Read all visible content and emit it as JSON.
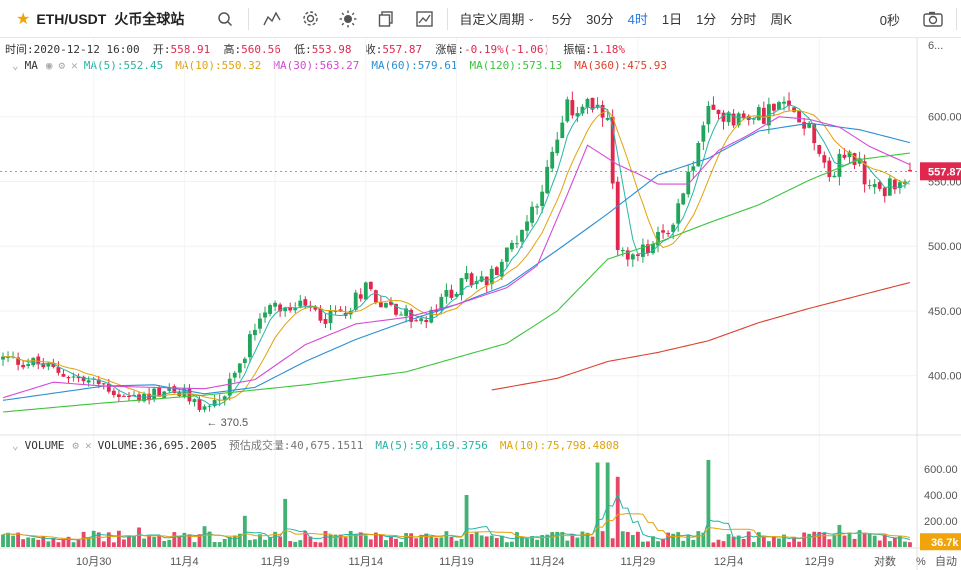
{
  "toolbar": {
    "symbol": "ETH/USDT",
    "exchange": "火币全球站",
    "periods": [
      "自定义周期",
      "5分",
      "30分",
      "4时",
      "1日",
      "1分",
      "分时",
      "周K"
    ],
    "active_period": "4时",
    "countdown": "0秒",
    "icons": [
      "star-icon",
      "search-icon",
      "indicator-icon",
      "settings-icon",
      "theme-icon",
      "copy-icon",
      "chart-type-icon",
      "camera-icon"
    ]
  },
  "ohlc": {
    "time_label": "时间:",
    "time": "2020-12-12 16:00",
    "open_label": "开:",
    "open": "558.91",
    "high_label": "高:",
    "high": "560.56",
    "low_label": "低:",
    "low": "553.98",
    "close_label": "收:",
    "close": "557.87",
    "change_label": "涨幅:",
    "change": "-0.19%(-1.06)",
    "amp_label": "振幅:",
    "amp": "1.18%"
  },
  "ma_legend": {
    "label": "MA",
    "items": [
      {
        "text": "MA(5):552.45",
        "color": "#26b5a5"
      },
      {
        "text": "MA(10):550.32",
        "color": "#e0a30d"
      },
      {
        "text": "MA(30):563.27",
        "color": "#d44bd6"
      },
      {
        "text": "MA(60):579.61",
        "color": "#2a8fd6"
      },
      {
        "text": "MA(120):573.13",
        "color": "#3cc43c"
      },
      {
        "text": "MA(360):475.93",
        "color": "#d9432f"
      }
    ]
  },
  "vol_legend": {
    "label": "VOLUME",
    "items": [
      {
        "text": "VOLUME:36,695.2005",
        "color": "#333333"
      },
      {
        "text": "预估成交量:40,675.1511",
        "color": "#777777"
      },
      {
        "text": "MA(5):50,169.3756",
        "color": "#26b5a5"
      },
      {
        "text": "MA(10):75,798.4808",
        "color": "#e0a30d"
      }
    ]
  },
  "colors": {
    "up": "#21a55a",
    "down": "#e0284e",
    "price_tag": "#e0284e",
    "vol_tag": "#f0a30a"
  },
  "chart_data": {
    "type": "candlestick",
    "price_axis": {
      "min": 355,
      "max": 650,
      "ticks": [
        400,
        450,
        500,
        550,
        600
      ],
      "tick_labels": [
        "400.00",
        "450.00",
        "500.00",
        "550.00",
        "600.00"
      ],
      "top_label": "6..."
    },
    "volume_axis": {
      "min": 0,
      "max": 700,
      "ticks": [
        200,
        400,
        600
      ],
      "tick_labels": [
        "200.00",
        "400.00",
        "600.00"
      ]
    },
    "x_labels": [
      "10月30",
      "11月4",
      "11月9",
      "11月14",
      "11月19",
      "11月24",
      "11月29",
      "12月4",
      "12月9"
    ],
    "x_label_candle_index": [
      18,
      36,
      54,
      72,
      90,
      108,
      126,
      144,
      162
    ],
    "bottom_right": [
      "对数",
      "%",
      "自动"
    ],
    "last_price": "557.87",
    "last_volume": "36.7k",
    "low_annotation": {
      "value": 370.5,
      "text": "← 370.5",
      "candle_index": 40
    },
    "price_path": [
      [
        0,
        413
      ],
      [
        6,
        410
      ],
      [
        12,
        402
      ],
      [
        16,
        396
      ],
      [
        20,
        393
      ],
      [
        24,
        383
      ],
      [
        28,
        384
      ],
      [
        32,
        389
      ],
      [
        36,
        385
      ],
      [
        40,
        375
      ],
      [
        44,
        385
      ],
      [
        47,
        408
      ],
      [
        50,
        440
      ],
      [
        53,
        459
      ],
      [
        56,
        451
      ],
      [
        60,
        452
      ],
      [
        64,
        445
      ],
      [
        68,
        451
      ],
      [
        72,
        470
      ],
      [
        76,
        454
      ],
      [
        80,
        447
      ],
      [
        84,
        441
      ],
      [
        88,
        462
      ],
      [
        92,
        474
      ],
      [
        96,
        473
      ],
      [
        100,
        495
      ],
      [
        104,
        520
      ],
      [
        108,
        556
      ],
      [
        112,
        605
      ],
      [
        116,
        610
      ],
      [
        120,
        592
      ],
      [
        122,
        500
      ],
      [
        124,
        488
      ],
      [
        128,
        498
      ],
      [
        132,
        512
      ],
      [
        136,
        553
      ],
      [
        140,
        602
      ],
      [
        144,
        603
      ],
      [
        148,
        596
      ],
      [
        152,
        605
      ],
      [
        156,
        606
      ],
      [
        160,
        595
      ],
      [
        164,
        555
      ],
      [
        168,
        575
      ],
      [
        172,
        545
      ],
      [
        176,
        546
      ],
      [
        180,
        557.87
      ]
    ],
    "volume_spikes": [
      [
        27,
        150
      ],
      [
        40,
        160
      ],
      [
        48,
        240
      ],
      [
        56,
        370
      ],
      [
        92,
        400
      ],
      [
        118,
        650
      ],
      [
        120,
        650
      ],
      [
        122,
        540
      ],
      [
        140,
        670
      ],
      [
        166,
        170
      ],
      [
        170,
        130
      ]
    ],
    "ma_lines": [
      {
        "name": "MA(120)",
        "color": "#3cc43c",
        "points": [
          [
            0,
            372
          ],
          [
            20,
            379
          ],
          [
            40,
            385
          ],
          [
            60,
            393
          ],
          [
            80,
            403
          ],
          [
            100,
            425
          ],
          [
            110,
            450
          ],
          [
            120,
            490
          ],
          [
            130,
            503
          ],
          [
            140,
            518
          ],
          [
            150,
            532
          ],
          [
            160,
            551
          ],
          [
            170,
            567
          ],
          [
            180,
            572
          ]
        ]
      },
      {
        "name": "MA(60)",
        "color": "#2a8fd6",
        "points": [
          [
            0,
            381
          ],
          [
            20,
            392
          ],
          [
            30,
            393
          ],
          [
            40,
            386
          ],
          [
            50,
            391
          ],
          [
            60,
            411
          ],
          [
            70,
            428
          ],
          [
            80,
            442
          ],
          [
            90,
            455
          ],
          [
            100,
            470
          ],
          [
            110,
            497
          ],
          [
            120,
            525
          ],
          [
            130,
            555
          ],
          [
            140,
            568
          ],
          [
            150,
            589
          ],
          [
            160,
            595
          ],
          [
            170,
            590
          ],
          [
            180,
            580
          ]
        ]
      },
      {
        "name": "MA(30)",
        "color": "#d44bd6",
        "points": [
          [
            0,
            383
          ],
          [
            10,
            395
          ],
          [
            20,
            392
          ],
          [
            30,
            391
          ],
          [
            40,
            390
          ],
          [
            50,
            397
          ],
          [
            60,
            424
          ],
          [
            70,
            440
          ],
          [
            80,
            445
          ],
          [
            90,
            455
          ],
          [
            100,
            468
          ],
          [
            106,
            485
          ],
          [
            112,
            540
          ],
          [
            116,
            578
          ],
          [
            122,
            563
          ],
          [
            126,
            556
          ],
          [
            130,
            548
          ],
          [
            136,
            548
          ],
          [
            142,
            574
          ],
          [
            148,
            586
          ],
          [
            154,
            600
          ],
          [
            160,
            598
          ],
          [
            166,
            592
          ],
          [
            172,
            577
          ],
          [
            176,
            570
          ],
          [
            180,
            563
          ]
        ]
      },
      {
        "name": "MA(360)",
        "color": "#d9432f",
        "points": [
          [
            97,
            389
          ],
          [
            110,
            398
          ],
          [
            120,
            411
          ],
          [
            130,
            418
          ],
          [
            140,
            427
          ],
          [
            150,
            441
          ],
          [
            160,
            452
          ],
          [
            170,
            462
          ],
          [
            180,
            472
          ]
        ]
      }
    ]
  }
}
